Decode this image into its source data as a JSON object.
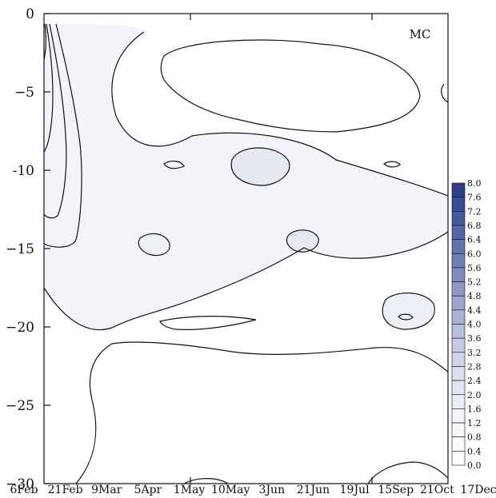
{
  "chart_data": {
    "type": "contour",
    "panel_label": "MC",
    "x_tick_labels": [
      "6Feb",
      "21Feb",
      "9Mar",
      "5Apr",
      "1May",
      "10May",
      "3Jun",
      "21Jun",
      "19Jul",
      "15Sep",
      "21Oct",
      "17Dec"
    ],
    "y_ticks": [
      0,
      -5,
      -10,
      -15,
      -20,
      -25,
      -30
    ],
    "y_tick_labels": [
      "0",
      "−5",
      "-10",
      "−15",
      "−20",
      "−25",
      "−30"
    ],
    "ylim": [
      -30,
      0
    ],
    "colorbar": {
      "levels": [
        "8.0",
        "7.6",
        "7.2",
        "6.8",
        "6.4",
        "6.0",
        "5.6",
        "5.2",
        "4.8",
        "4.4",
        "4.0",
        "3.6",
        "3.2",
        "2.8",
        "2.4",
        "2.0",
        "1.6",
        "1.2",
        "0.8",
        "0.4",
        "0.0"
      ],
      "colors": [
        "#2e3f87",
        "#3b4c92",
        "#49589c",
        "#5665a5",
        "#6472ae",
        "#727fb7",
        "#808cbf",
        "#8e98c7",
        "#9ca5ce",
        "#aab2d6",
        "#b8bedd",
        "#c5cae4",
        "#d0d4e9",
        "#dadeee",
        "#e3e6f2",
        "#ebeef6",
        "#f1f3f9",
        "#f6f7fb",
        "#fafafd",
        "#fcfcfe",
        "#ffffff"
      ]
    },
    "grid": false,
    "legend": "colorbar-right"
  }
}
